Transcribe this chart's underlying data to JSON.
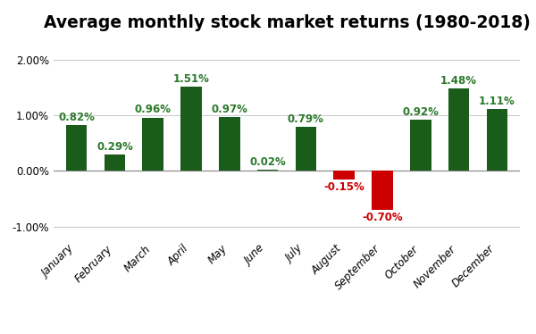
{
  "title": "Average monthly stock market returns (1980-2018)",
  "months": [
    "January",
    "February",
    "March",
    "April",
    "May",
    "June",
    "July",
    "August",
    "September",
    "October",
    "November",
    "December"
  ],
  "values": [
    0.82,
    0.29,
    0.96,
    1.51,
    0.97,
    0.02,
    0.79,
    -0.15,
    -0.7,
    0.92,
    1.48,
    1.11
  ],
  "bar_color_positive": "#1a5c1a",
  "bar_color_negative": "#cc0000",
  "label_color_positive": "#2d7a2d",
  "label_color_negative": "#cc0000",
  "title_color": "#000000",
  "ylim": [
    -1.25,
    2.35
  ],
  "yticks": [
    -1.0,
    0.0,
    1.0,
    2.0
  ],
  "background_color": "#ffffff",
  "title_fontsize": 13.5,
  "tick_fontsize": 8.5,
  "label_fontsize": 8.5,
  "bar_width": 0.55,
  "grid_color": "#cccccc"
}
